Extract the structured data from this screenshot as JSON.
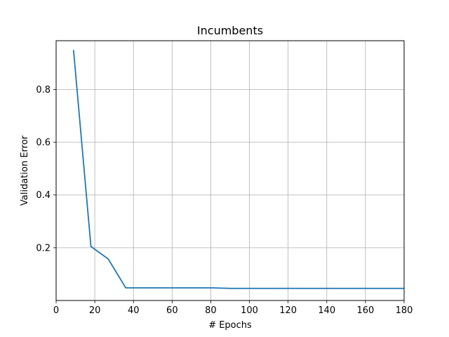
{
  "chart_data": {
    "type": "line",
    "title": "Incumbents",
    "xlabel": "# Epochs",
    "ylabel": "Validation Error",
    "xlim": [
      0,
      180
    ],
    "ylim": [
      0.0,
      0.985
    ],
    "xticks": [
      0,
      20,
      40,
      60,
      80,
      100,
      120,
      140,
      160,
      180
    ],
    "yticks": [
      0.2,
      0.4,
      0.6,
      0.8
    ],
    "ytick_labels": [
      "0.2",
      "0.4",
      "0.6",
      "0.8"
    ],
    "grid": true,
    "series": [
      {
        "color": "#1f77b4",
        "x": [
          9,
          18,
          27,
          36,
          45,
          54,
          63,
          72,
          81,
          90,
          100,
          110,
          120,
          130,
          140,
          150,
          160,
          170,
          180
        ],
        "values": [
          0.95,
          0.205,
          0.157,
          0.048,
          0.048,
          0.048,
          0.048,
          0.048,
          0.048,
          0.046,
          0.046,
          0.046,
          0.046,
          0.046,
          0.046,
          0.046,
          0.046,
          0.046,
          0.046
        ]
      }
    ]
  }
}
